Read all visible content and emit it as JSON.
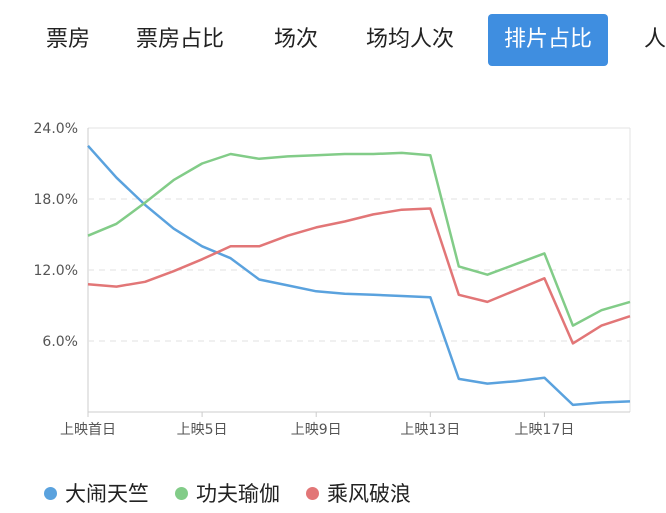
{
  "tabs": [
    {
      "label": "票房",
      "active": false
    },
    {
      "label": "票房占比",
      "active": false
    },
    {
      "label": "场次",
      "active": false
    },
    {
      "label": "场均人次",
      "active": false
    },
    {
      "label": "排片占比",
      "active": true
    },
    {
      "label": "人",
      "active": false
    }
  ],
  "chart_data": {
    "type": "line",
    "x": [
      1,
      2,
      3,
      4,
      5,
      6,
      7,
      8,
      9,
      10,
      11,
      12,
      13,
      14,
      15,
      16,
      17,
      18,
      19,
      20
    ],
    "xtick_labels": [
      {
        "x": 1,
        "label": "上映首日"
      },
      {
        "x": 5,
        "label": "上映5日"
      },
      {
        "x": 9,
        "label": "上映9日"
      },
      {
        "x": 13,
        "label": "上映13日"
      },
      {
        "x": 17,
        "label": "上映17日"
      }
    ],
    "ylim": [
      0,
      24
    ],
    "yticks": [
      {
        "value": 6,
        "label": "6.0%"
      },
      {
        "value": 12,
        "label": "12.0%"
      },
      {
        "value": 18,
        "label": "18.0%"
      },
      {
        "value": 24,
        "label": "24.0%"
      }
    ],
    "grid": "horizontal-dashed",
    "legend_position": "bottom-left",
    "series": [
      {
        "name": "大闹天竺",
        "color": "#5aa2de",
        "values": [
          22.5,
          19.8,
          17.5,
          15.5,
          14.0,
          13.0,
          11.2,
          10.7,
          10.2,
          10.0,
          9.9,
          9.8,
          9.7,
          2.8,
          2.4,
          2.6,
          2.9,
          0.6,
          0.8,
          0.9
        ]
      },
      {
        "name": "功夫瑜伽",
        "color": "#82cc88",
        "values": [
          14.9,
          15.9,
          17.7,
          19.6,
          21.0,
          21.8,
          21.4,
          21.6,
          21.7,
          21.8,
          21.8,
          21.9,
          21.7,
          12.3,
          11.6,
          12.5,
          13.4,
          7.3,
          8.6,
          9.3
        ]
      },
      {
        "name": "乘风破浪",
        "color": "#e27677",
        "values": [
          10.8,
          10.6,
          11.0,
          11.9,
          12.9,
          14.0,
          14.0,
          14.9,
          15.6,
          16.1,
          16.7,
          17.1,
          17.2,
          9.9,
          9.3,
          10.3,
          11.3,
          5.8,
          7.3,
          8.1
        ]
      }
    ]
  }
}
